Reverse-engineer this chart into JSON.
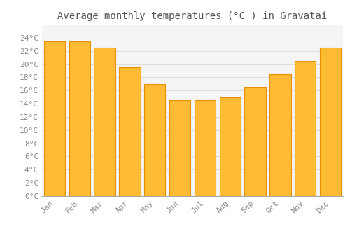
{
  "title": "Average monthly temperatures (°C ) in Gravataí",
  "months": [
    "Jan",
    "Feb",
    "Mar",
    "Apr",
    "May",
    "Jun",
    "Jul",
    "Aug",
    "Sep",
    "Oct",
    "Nov",
    "Dec"
  ],
  "values": [
    23.5,
    23.5,
    22.5,
    19.5,
    17.0,
    14.5,
    14.5,
    15.0,
    16.5,
    18.5,
    20.5,
    22.5
  ],
  "bar_color": "#FFBB33",
  "bar_edge_color": "#E89000",
  "ylim": [
    0,
    26
  ],
  "yticks": [
    0,
    2,
    4,
    6,
    8,
    10,
    12,
    14,
    16,
    18,
    20,
    22,
    24
  ],
  "background_color": "#FFFFFF",
  "plot_bg_color": "#F5F5F5",
  "grid_color": "#DDDDDD",
  "title_fontsize": 10,
  "tick_fontsize": 8,
  "title_color": "#555555",
  "tick_color": "#888888"
}
